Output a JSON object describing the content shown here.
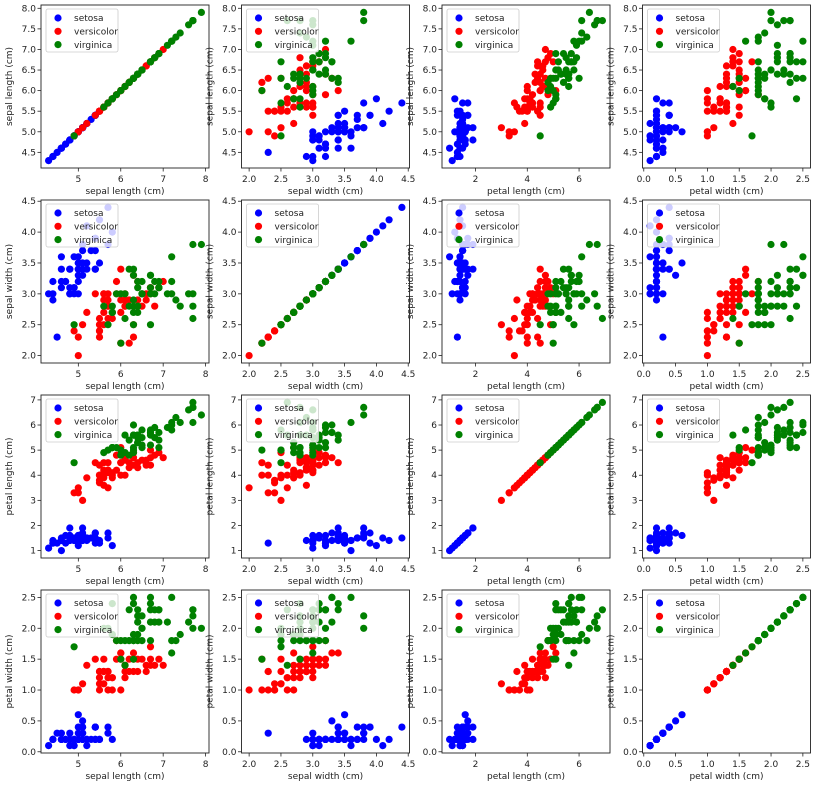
{
  "chart_data": {
    "type": "scatter",
    "layout": "4x4 scatter matrix",
    "legend_placement": "upper-left",
    "grid": false,
    "features": [
      {
        "label": "sepal length (cm)",
        "range": [
          4.12,
          8.08
        ],
        "x_ticks": [
          5,
          6,
          7,
          8
        ],
        "x_tick_labels": [
          "5",
          "6",
          "7",
          "8"
        ],
        "y_ticks": [
          4.5,
          5.0,
          5.5,
          6.0,
          6.5,
          7.0,
          7.5,
          8.0
        ],
        "y_tick_labels": [
          "4.5",
          "5.0",
          "5.5",
          "6.0",
          "6.5",
          "7.0",
          "7.5",
          "8.0"
        ]
      },
      {
        "label": "sepal width (cm)",
        "range": [
          1.88,
          4.52
        ],
        "x_ticks": [
          2.0,
          2.5,
          3.0,
          3.5,
          4.0,
          4.5
        ],
        "x_tick_labels": [
          "2.0",
          "2.5",
          "3.0",
          "3.5",
          "4.0",
          "4.5"
        ],
        "y_ticks": [
          2.0,
          2.5,
          3.0,
          3.5,
          4.0,
          4.5
        ],
        "y_tick_labels": [
          "2.0",
          "2.5",
          "3.0",
          "3.5",
          "4.0",
          "4.5"
        ]
      },
      {
        "label": "petal length (cm)",
        "range": [
          0.705,
          7.195
        ],
        "x_ticks": [
          2,
          4,
          6
        ],
        "x_tick_labels": [
          "2",
          "4",
          "6"
        ],
        "y_ticks": [
          1,
          2,
          3,
          4,
          5,
          6,
          7
        ],
        "y_tick_labels": [
          "1",
          "2",
          "3",
          "4",
          "5",
          "6",
          "7"
        ]
      },
      {
        "label": "petal width (cm)",
        "range": [
          -0.02,
          2.62
        ],
        "x_ticks": [
          0.0,
          0.5,
          1.0,
          1.5,
          2.0,
          2.5
        ],
        "x_tick_labels": [
          "0.0",
          "0.5",
          "1.0",
          "1.5",
          "2.0",
          "2.5"
        ],
        "y_ticks": [
          0.0,
          0.5,
          1.0,
          1.5,
          2.0,
          2.5
        ],
        "y_tick_labels": [
          "0.0",
          "0.5",
          "1.0",
          "1.5",
          "2.0",
          "2.5"
        ]
      }
    ],
    "series": [
      {
        "name": "setosa",
        "color": "#0000ff",
        "points": [
          [
            5.1,
            3.5,
            1.4,
            0.2
          ],
          [
            4.9,
            3.0,
            1.4,
            0.2
          ],
          [
            4.7,
            3.2,
            1.3,
            0.2
          ],
          [
            4.6,
            3.1,
            1.5,
            0.2
          ],
          [
            5.0,
            3.6,
            1.4,
            0.2
          ],
          [
            5.4,
            3.9,
            1.7,
            0.4
          ],
          [
            4.6,
            3.4,
            1.4,
            0.3
          ],
          [
            5.0,
            3.4,
            1.5,
            0.2
          ],
          [
            4.4,
            2.9,
            1.4,
            0.2
          ],
          [
            4.9,
            3.1,
            1.5,
            0.1
          ],
          [
            5.4,
            3.7,
            1.5,
            0.2
          ],
          [
            4.8,
            3.4,
            1.6,
            0.2
          ],
          [
            4.8,
            3.0,
            1.4,
            0.1
          ],
          [
            4.3,
            3.0,
            1.1,
            0.1
          ],
          [
            5.8,
            4.0,
            1.2,
            0.2
          ],
          [
            5.7,
            4.4,
            1.5,
            0.4
          ],
          [
            5.4,
            3.9,
            1.3,
            0.4
          ],
          [
            5.1,
            3.5,
            1.4,
            0.3
          ],
          [
            5.7,
            3.8,
            1.7,
            0.3
          ],
          [
            5.1,
            3.8,
            1.5,
            0.3
          ],
          [
            5.4,
            3.4,
            1.7,
            0.2
          ],
          [
            5.1,
            3.7,
            1.5,
            0.4
          ],
          [
            4.6,
            3.6,
            1.0,
            0.2
          ],
          [
            5.1,
            3.3,
            1.7,
            0.5
          ],
          [
            4.8,
            3.4,
            1.9,
            0.2
          ],
          [
            5.0,
            3.0,
            1.6,
            0.2
          ],
          [
            5.0,
            3.4,
            1.6,
            0.4
          ],
          [
            5.2,
            3.5,
            1.5,
            0.2
          ],
          [
            5.2,
            3.4,
            1.4,
            0.2
          ],
          [
            4.7,
            3.2,
            1.6,
            0.2
          ],
          [
            4.8,
            3.1,
            1.6,
            0.2
          ],
          [
            5.4,
            3.4,
            1.5,
            0.4
          ],
          [
            5.2,
            4.1,
            1.5,
            0.1
          ],
          [
            5.5,
            4.2,
            1.4,
            0.2
          ],
          [
            4.9,
            3.1,
            1.5,
            0.2
          ],
          [
            5.0,
            3.2,
            1.2,
            0.2
          ],
          [
            5.5,
            3.5,
            1.3,
            0.2
          ],
          [
            4.9,
            3.6,
            1.4,
            0.1
          ],
          [
            4.4,
            3.0,
            1.3,
            0.2
          ],
          [
            5.1,
            3.4,
            1.5,
            0.2
          ],
          [
            5.0,
            3.5,
            1.3,
            0.3
          ],
          [
            4.5,
            2.3,
            1.3,
            0.3
          ],
          [
            4.4,
            3.2,
            1.3,
            0.2
          ],
          [
            5.0,
            3.5,
            1.6,
            0.6
          ],
          [
            5.1,
            3.8,
            1.9,
            0.4
          ],
          [
            4.8,
            3.0,
            1.4,
            0.3
          ],
          [
            5.1,
            3.8,
            1.6,
            0.2
          ],
          [
            4.6,
            3.2,
            1.4,
            0.2
          ],
          [
            5.3,
            3.7,
            1.5,
            0.2
          ],
          [
            5.0,
            3.3,
            1.4,
            0.2
          ]
        ]
      },
      {
        "name": "versicolor",
        "color": "#ff0000",
        "points": [
          [
            7.0,
            3.2,
            4.7,
            1.4
          ],
          [
            6.4,
            3.2,
            4.5,
            1.5
          ],
          [
            6.9,
            3.1,
            4.9,
            1.5
          ],
          [
            5.5,
            2.3,
            4.0,
            1.3
          ],
          [
            6.5,
            2.8,
            4.6,
            1.5
          ],
          [
            5.7,
            2.8,
            4.5,
            1.3
          ],
          [
            6.3,
            3.3,
            4.7,
            1.6
          ],
          [
            4.9,
            2.4,
            3.3,
            1.0
          ],
          [
            6.6,
            2.9,
            4.6,
            1.3
          ],
          [
            5.2,
            2.7,
            3.9,
            1.4
          ],
          [
            5.0,
            2.0,
            3.5,
            1.0
          ],
          [
            5.9,
            3.0,
            4.2,
            1.5
          ],
          [
            6.0,
            2.2,
            4.0,
            1.0
          ],
          [
            6.1,
            2.9,
            4.7,
            1.4
          ],
          [
            5.6,
            2.9,
            3.6,
            1.3
          ],
          [
            6.7,
            3.1,
            4.4,
            1.4
          ],
          [
            5.6,
            3.0,
            4.5,
            1.5
          ],
          [
            5.8,
            2.7,
            4.1,
            1.0
          ],
          [
            6.2,
            2.2,
            4.5,
            1.5
          ],
          [
            5.6,
            2.5,
            3.9,
            1.1
          ],
          [
            5.9,
            3.2,
            4.8,
            1.8
          ],
          [
            6.1,
            2.8,
            4.0,
            1.3
          ],
          [
            6.3,
            2.5,
            4.9,
            1.5
          ],
          [
            6.1,
            2.8,
            4.7,
            1.2
          ],
          [
            6.4,
            2.9,
            4.3,
            1.3
          ],
          [
            6.6,
            3.0,
            4.4,
            1.4
          ],
          [
            6.8,
            2.8,
            4.8,
            1.4
          ],
          [
            6.7,
            3.0,
            5.0,
            1.7
          ],
          [
            6.0,
            2.9,
            4.5,
            1.5
          ],
          [
            5.7,
            2.6,
            3.5,
            1.0
          ],
          [
            5.5,
            2.4,
            3.8,
            1.1
          ],
          [
            5.5,
            2.4,
            3.7,
            1.0
          ],
          [
            5.8,
            2.7,
            3.9,
            1.2
          ],
          [
            6.0,
            2.7,
            5.1,
            1.6
          ],
          [
            5.4,
            3.0,
            4.5,
            1.5
          ],
          [
            6.0,
            3.4,
            4.5,
            1.6
          ],
          [
            6.7,
            3.1,
            4.7,
            1.5
          ],
          [
            6.3,
            2.3,
            4.4,
            1.3
          ],
          [
            5.6,
            3.0,
            4.1,
            1.3
          ],
          [
            5.5,
            2.5,
            4.0,
            1.3
          ],
          [
            5.5,
            2.6,
            4.4,
            1.2
          ],
          [
            6.1,
            3.0,
            4.6,
            1.4
          ],
          [
            5.8,
            2.6,
            4.0,
            1.2
          ],
          [
            5.0,
            2.3,
            3.3,
            1.0
          ],
          [
            5.6,
            2.7,
            4.2,
            1.3
          ],
          [
            5.7,
            3.0,
            4.2,
            1.2
          ],
          [
            5.7,
            2.9,
            4.2,
            1.3
          ],
          [
            6.2,
            2.9,
            4.3,
            1.3
          ],
          [
            5.1,
            2.5,
            3.0,
            1.1
          ],
          [
            5.7,
            2.8,
            4.1,
            1.3
          ]
        ]
      },
      {
        "name": "virginica",
        "color": "#008000",
        "points": [
          [
            6.3,
            3.3,
            6.0,
            2.5
          ],
          [
            5.8,
            2.7,
            5.1,
            1.9
          ],
          [
            7.1,
            3.0,
            5.9,
            2.1
          ],
          [
            6.3,
            2.9,
            5.6,
            1.8
          ],
          [
            6.5,
            3.0,
            5.8,
            2.2
          ],
          [
            7.6,
            3.0,
            6.6,
            2.1
          ],
          [
            4.9,
            2.5,
            4.5,
            1.7
          ],
          [
            7.3,
            2.9,
            6.3,
            1.8
          ],
          [
            6.7,
            2.5,
            5.8,
            1.8
          ],
          [
            7.2,
            3.6,
            6.1,
            2.5
          ],
          [
            6.5,
            3.2,
            5.1,
            2.0
          ],
          [
            6.4,
            2.7,
            5.3,
            1.9
          ],
          [
            6.8,
            3.0,
            5.5,
            2.1
          ],
          [
            5.7,
            2.5,
            5.0,
            2.0
          ],
          [
            5.8,
            2.8,
            5.1,
            2.4
          ],
          [
            6.4,
            3.2,
            5.3,
            2.3
          ],
          [
            6.5,
            3.0,
            5.5,
            1.8
          ],
          [
            7.7,
            3.8,
            6.7,
            2.2
          ],
          [
            7.7,
            2.6,
            6.9,
            2.3
          ],
          [
            6.0,
            2.2,
            5.0,
            1.5
          ],
          [
            6.9,
            3.2,
            5.7,
            2.3
          ],
          [
            5.6,
            2.8,
            4.9,
            2.0
          ],
          [
            7.7,
            2.8,
            6.7,
            2.0
          ],
          [
            6.3,
            2.7,
            4.9,
            1.8
          ],
          [
            6.7,
            3.3,
            5.7,
            2.1
          ],
          [
            7.2,
            3.2,
            6.0,
            1.8
          ],
          [
            6.2,
            2.8,
            4.8,
            1.8
          ],
          [
            6.1,
            3.0,
            4.9,
            1.8
          ],
          [
            6.4,
            2.8,
            5.6,
            2.1
          ],
          [
            7.2,
            3.0,
            5.8,
            1.6
          ],
          [
            7.4,
            2.8,
            6.1,
            1.9
          ],
          [
            7.9,
            3.8,
            6.4,
            2.0
          ],
          [
            6.4,
            2.8,
            5.6,
            2.2
          ],
          [
            6.3,
            2.8,
            5.1,
            1.5
          ],
          [
            6.1,
            2.6,
            5.6,
            1.4
          ],
          [
            7.7,
            3.0,
            6.1,
            2.3
          ],
          [
            6.3,
            3.4,
            5.6,
            2.4
          ],
          [
            6.4,
            3.1,
            5.5,
            1.8
          ],
          [
            6.0,
            3.0,
            4.8,
            1.8
          ],
          [
            6.9,
            3.1,
            5.4,
            2.1
          ],
          [
            6.7,
            3.1,
            5.6,
            2.4
          ],
          [
            6.9,
            3.1,
            5.1,
            2.3
          ],
          [
            5.8,
            2.7,
            5.1,
            1.9
          ],
          [
            6.8,
            3.2,
            5.9,
            2.3
          ],
          [
            6.7,
            3.3,
            5.7,
            2.5
          ],
          [
            6.7,
            3.0,
            5.2,
            2.3
          ],
          [
            6.3,
            2.5,
            5.0,
            1.9
          ],
          [
            6.5,
            3.0,
            5.2,
            2.0
          ],
          [
            6.2,
            3.4,
            5.4,
            2.3
          ],
          [
            5.9,
            3.0,
            5.1,
            1.8
          ]
        ]
      }
    ]
  }
}
